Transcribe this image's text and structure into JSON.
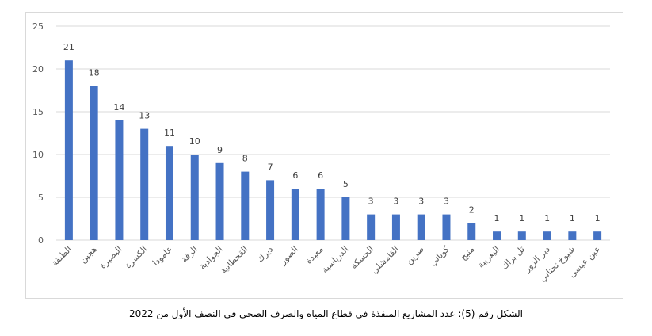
{
  "chart_data": {
    "type": "bar",
    "categories": [
      "الطبقة",
      "هجين",
      "البصيرة",
      "الكسرة",
      "عامودا",
      "الرقة",
      "الجوادية",
      "القحطانية",
      "ديرك",
      "الصور",
      "معبدة",
      "الدرباسية",
      "الحسكة",
      "القامشلي",
      "صرين",
      "كوباني",
      "منبج",
      "اليعربية",
      "تل براك",
      "دير الزور",
      "شيوخ تحتاني",
      "عين عيسى"
    ],
    "values": [
      21,
      18,
      14,
      13,
      11,
      10,
      9,
      8,
      7,
      6,
      6,
      5,
      3,
      3,
      3,
      3,
      2,
      1,
      1,
      1,
      1,
      1
    ],
    "ylim": [
      0,
      25
    ],
    "yticks": [
      0,
      5,
      10,
      15,
      20,
      25
    ],
    "grid": true,
    "bar_color": "#4472c4",
    "title": "",
    "xlabel": "",
    "ylabel": ""
  },
  "caption": "الشكل رقم (5): عدد المشاريع المنفذة في قطاع المياه والصرف الصحي في النصف الأول من 2022"
}
